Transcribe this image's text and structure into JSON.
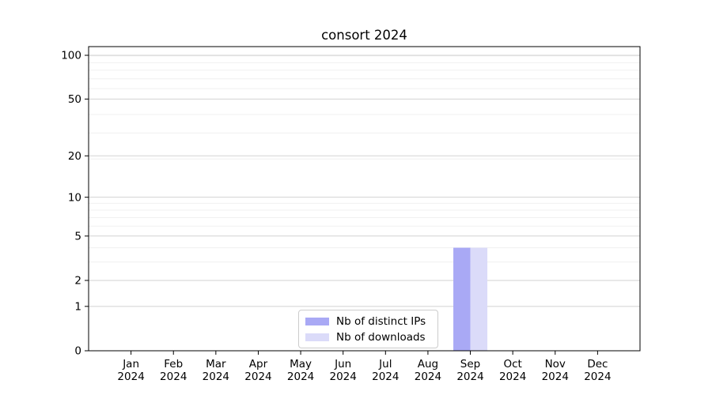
{
  "title": "consort 2024",
  "chart_data": {
    "type": "bar",
    "title": "consort 2024",
    "categories": [
      "Jan 2024",
      "Feb 2024",
      "Mar 2024",
      "Apr 2024",
      "May 2024",
      "Jun 2024",
      "Jul 2024",
      "Aug 2024",
      "Sep 2024",
      "Oct 2024",
      "Nov 2024",
      "Dec 2024"
    ],
    "x_tick_line1": [
      "Jan",
      "Feb",
      "Mar",
      "Apr",
      "May",
      "Jun",
      "Jul",
      "Aug",
      "Sep",
      "Oct",
      "Nov",
      "Dec"
    ],
    "x_tick_line2": [
      "2024",
      "2024",
      "2024",
      "2024",
      "2024",
      "2024",
      "2024",
      "2024",
      "2024",
      "2024",
      "2024",
      "2024"
    ],
    "series": [
      {
        "name": "Nb of distinct IPs",
        "color": "#a9a9f5",
        "values": [
          0,
          0,
          0,
          0,
          0,
          0,
          0,
          0,
          4,
          0,
          0,
          0
        ]
      },
      {
        "name": "Nb of downloads",
        "color": "#dbdbf9",
        "values": [
          0,
          0,
          0,
          0,
          0,
          0,
          0,
          0,
          4,
          0,
          0,
          0
        ]
      }
    ],
    "y_scale": "log10(1+x)",
    "y_ticks": [
      0,
      1,
      2,
      5,
      10,
      20,
      50,
      100
    ],
    "y_tick_labels": [
      "0",
      "1",
      "2",
      "5",
      "10",
      "20",
      "50",
      "100"
    ],
    "y_minor_lines_at_1px": [
      4,
      5,
      7,
      8,
      9,
      10,
      20,
      30,
      40,
      60,
      70,
      80,
      90,
      100
    ],
    "ylim": [
      0,
      115
    ],
    "xlabel": "",
    "ylabel": "",
    "grid": "horizontal",
    "legend_position": "lower-center-inside",
    "colors": {
      "axis": "#000000",
      "major_grid": "#d2d2d2",
      "minor_grid": "#f0f0f0",
      "background": "#ffffff",
      "text": "#000000",
      "legend_border": "#cccccc"
    }
  }
}
